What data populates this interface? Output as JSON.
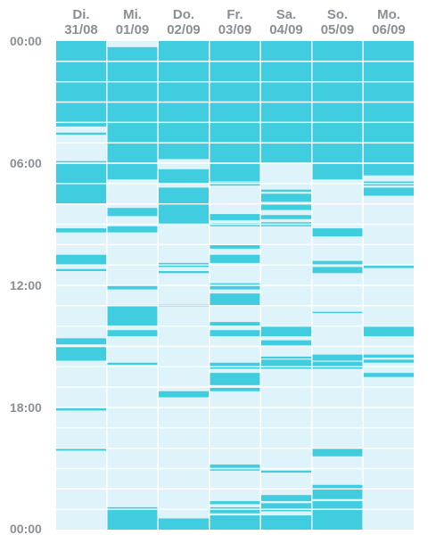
{
  "colors": {
    "active": "#41cde0",
    "inactive": "#dff4fa",
    "gridline": "#ffffff",
    "label": "#8a8f95"
  },
  "time_labels": [
    "00:00",
    "06:00",
    "12:00",
    "18:00",
    "00:00"
  ],
  "chart_data": {
    "type": "heatmap",
    "title": "",
    "days": [
      {
        "weekday": "Di.",
        "date": "31/08",
        "active": [
          [
            0,
            4.2
          ],
          [
            4.5,
            4.6
          ],
          [
            5.9,
            8.0
          ],
          [
            9.2,
            9.4
          ],
          [
            10.5,
            11.0
          ],
          [
            11.2,
            11.3
          ],
          [
            14.6,
            14.9
          ],
          [
            15.0,
            15.7
          ],
          [
            18.0,
            18.15
          ],
          [
            19.98,
            20.12
          ]
        ]
      },
      {
        "weekday": "Mi.",
        "date": "01/09",
        "active": [
          [
            0.3,
            6.8
          ],
          [
            8.2,
            8.6
          ],
          [
            9.1,
            9.4
          ],
          [
            12.0,
            12.2
          ],
          [
            13.0,
            14.0
          ],
          [
            14.2,
            14.5
          ],
          [
            15.8,
            15.9
          ],
          [
            22.9,
            24.0
          ]
        ]
      },
      {
        "weekday": "Do.",
        "date": "02/09",
        "active": [
          [
            0,
            5.8
          ],
          [
            6.3,
            7.0
          ],
          [
            7.2,
            9.0
          ],
          [
            10.9,
            11.1
          ],
          [
            11.3,
            11.4
          ],
          [
            12.95,
            13.05
          ],
          [
            17.2,
            17.5
          ],
          [
            23.45,
            24.0
          ]
        ]
      },
      {
        "weekday": "Fr.",
        "date": "03/09",
        "active": [
          [
            0,
            6.9
          ],
          [
            6.95,
            7.1
          ],
          [
            8.5,
            8.8
          ],
          [
            8.95,
            9.1
          ],
          [
            10.0,
            10.2
          ],
          [
            10.5,
            10.9
          ],
          [
            11.9,
            12.2
          ],
          [
            12.4,
            13.0
          ],
          [
            13.8,
            14.0
          ],
          [
            14.2,
            14.5
          ],
          [
            15.8,
            16.1
          ],
          [
            16.3,
            16.9
          ],
          [
            17.0,
            17.2
          ],
          [
            20.8,
            21.1
          ],
          [
            22.6,
            22.75
          ],
          [
            22.9,
            23.2
          ],
          [
            23.3,
            24.0
          ]
        ]
      },
      {
        "weekday": "Sa.",
        "date": "04/09",
        "active": [
          [
            0,
            6.0
          ],
          [
            7.3,
            7.4
          ],
          [
            7.5,
            7.9
          ],
          [
            8.0,
            8.3
          ],
          [
            8.55,
            8.75
          ],
          [
            8.9,
            9.1
          ],
          [
            14.0,
            14.5
          ],
          [
            14.7,
            14.95
          ],
          [
            15.5,
            15.6
          ],
          [
            15.65,
            16.1
          ],
          [
            21.1,
            21.2
          ],
          [
            22.3,
            22.6
          ],
          [
            22.7,
            23.1
          ],
          [
            23.3,
            24.0
          ]
        ]
      },
      {
        "weekday": "So.",
        "date": "05/09",
        "active": [
          [
            0,
            6.8
          ],
          [
            9.2,
            9.6
          ],
          [
            10.8,
            11.0
          ],
          [
            11.1,
            11.4
          ],
          [
            13.3,
            13.35
          ],
          [
            15.4,
            15.7
          ],
          [
            15.75,
            16.1
          ],
          [
            20.0,
            20.4
          ],
          [
            21.8,
            22.5
          ],
          [
            22.6,
            24.0
          ]
        ]
      },
      {
        "weekday": "Mo.",
        "date": "06/09",
        "active": [
          [
            0,
            6.6
          ],
          [
            6.9,
            7.1
          ],
          [
            7.2,
            7.6
          ],
          [
            11.0,
            11.15
          ],
          [
            14.0,
            14.5
          ],
          [
            15.4,
            15.55
          ],
          [
            15.65,
            15.8
          ],
          [
            16.3,
            16.5
          ]
        ]
      }
    ]
  }
}
